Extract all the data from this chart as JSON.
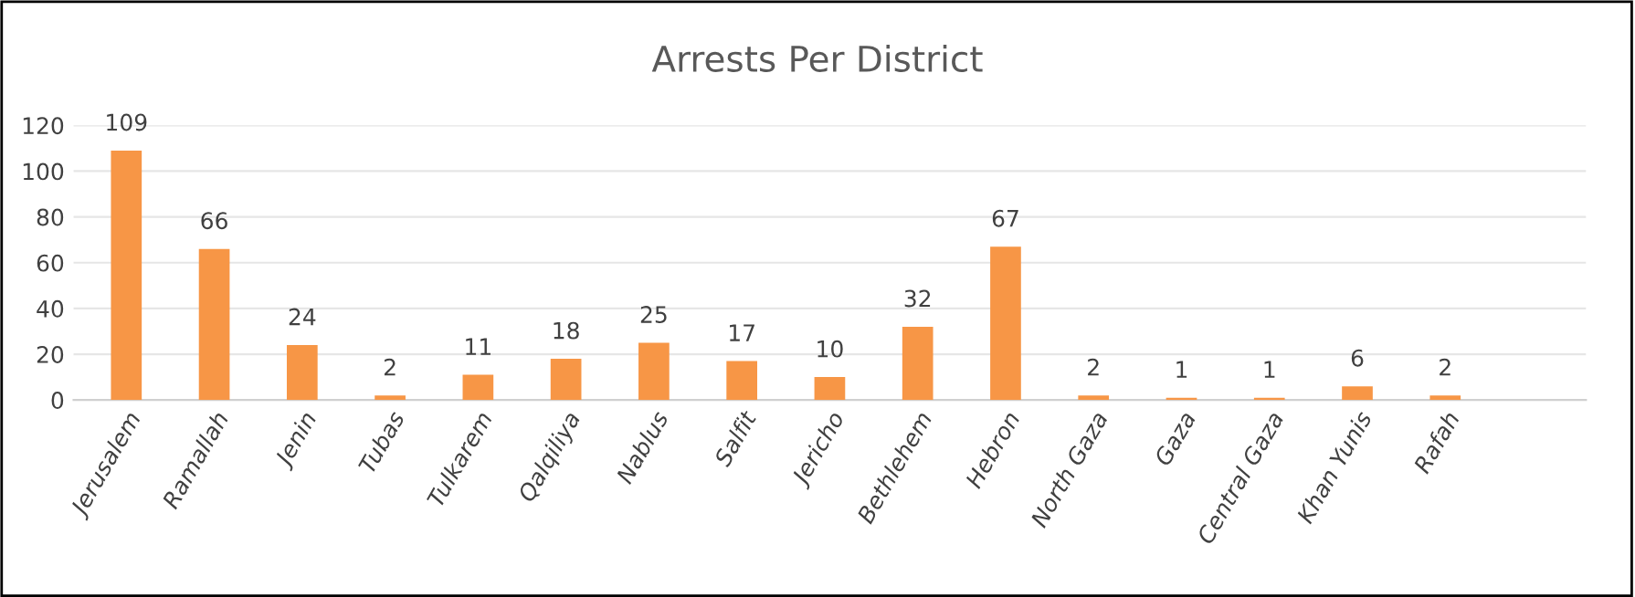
{
  "chart_data": {
    "type": "bar",
    "title": "Arrests Per District",
    "categories": [
      "Jerusalem",
      "Ramallah",
      "Jenin",
      "Tubas",
      "Tulkarem",
      "Qalqiliya",
      "Nablus",
      "Salfit",
      "Jericho",
      "Bethlehem",
      "Hebron",
      "North Gaza",
      "Gaza",
      "Central Gaza",
      "Khan Yunis",
      "Rafah"
    ],
    "values": [
      109,
      66,
      24,
      2,
      11,
      18,
      25,
      17,
      10,
      32,
      67,
      2,
      1,
      1,
      6,
      2
    ],
    "color": "#f79646",
    "ylim": [
      0,
      120
    ],
    "yticks": [
      0,
      20,
      40,
      60,
      80,
      100,
      120
    ],
    "grid": "y",
    "data_labels": true,
    "legend": false
  }
}
